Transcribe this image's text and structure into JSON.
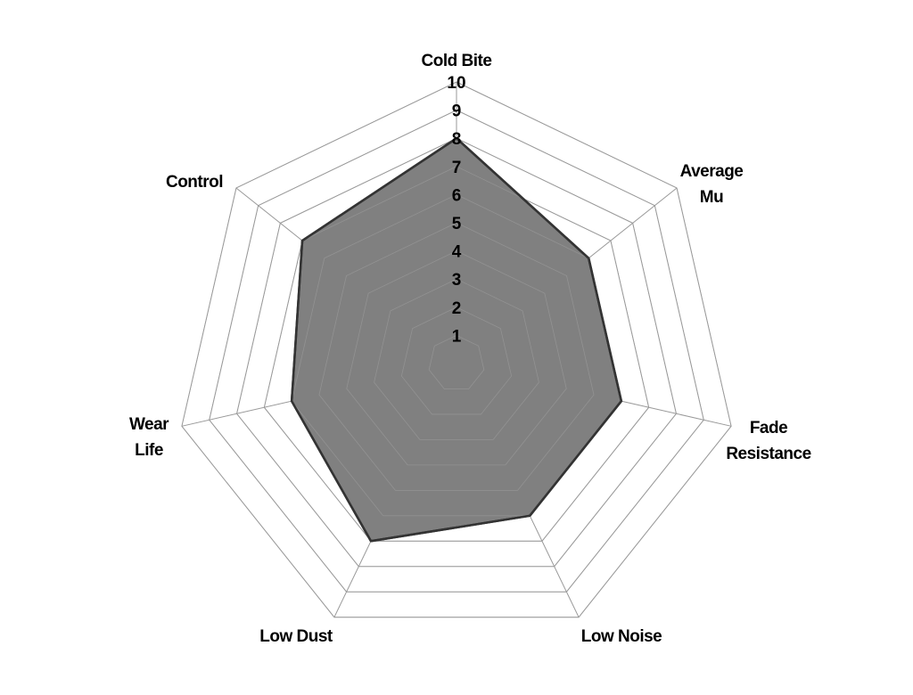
{
  "chart_data": {
    "type": "radar",
    "categories": [
      "Cold Bite",
      "Average Mu",
      "Fade Resistance",
      "Low Noise",
      "Low Dust",
      "Wear Life",
      "Control"
    ],
    "category_lines": [
      [
        "Cold Bite"
      ],
      [
        "Average",
        "Mu"
      ],
      [
        "Fade",
        "Resistance"
      ],
      [
        "Low Noise"
      ],
      [
        "Low Dust"
      ],
      [
        "Wear",
        "Life"
      ],
      [
        "Control"
      ]
    ],
    "values": [
      8,
      6,
      6,
      6,
      7,
      6,
      7
    ],
    "rlim": [
      0,
      10
    ],
    "r_ticks": [
      "1",
      "2",
      "3",
      "4",
      "5",
      "6",
      "7",
      "8",
      "9",
      "10"
    ],
    "grid": true,
    "colors": {
      "fill": "#808080",
      "line": "#333333",
      "grid": "#999999"
    }
  }
}
